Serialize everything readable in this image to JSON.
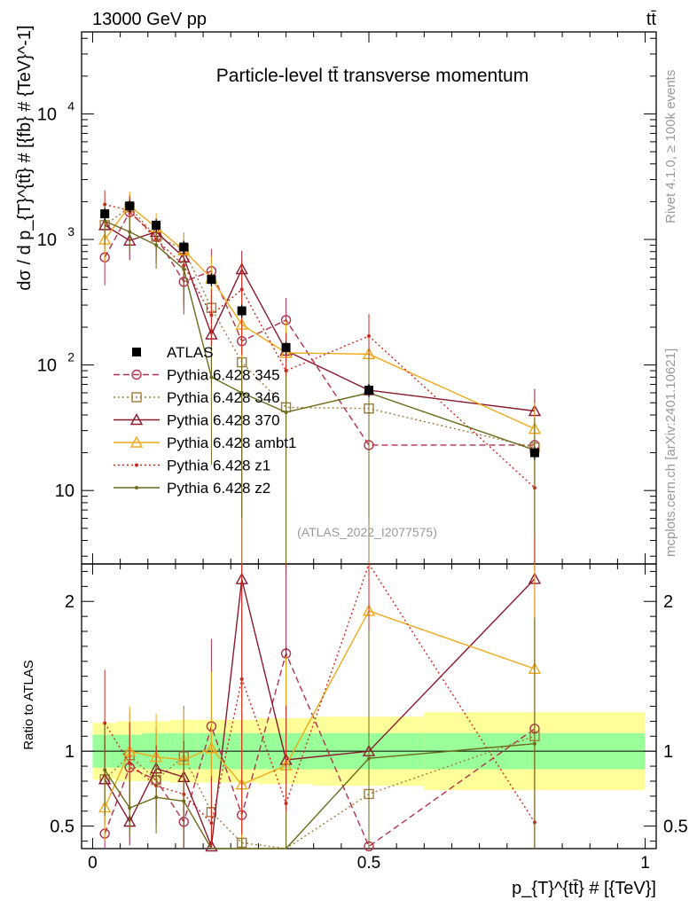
{
  "chart_data": {
    "type": "line",
    "header_left": "13000 GeV pp",
    "header_right": "tt̄",
    "title": "Particle-level tt̄ transverse momentum",
    "analysis_id": "(ATLAS_2022_I2077575)",
    "side_label_top": "Rivet 4.1.0, ≥ 100k events",
    "side_label_bottom": "mcplots.cern.ch [arXiv:2401.10621]",
    "ylabel": "dσ / d p_{T}^{tt̄} # [{fb} # {TeV}^-1]",
    "ratio_ylabel": "Ratio to ATLAS",
    "xlabel": "p_{T}^{tt̄} # [{TeV}]",
    "xlim": [
      -0.02,
      1.02
    ],
    "ylim": [
      2.6,
      45000
    ],
    "ratio_ylim": [
      0.35,
      2.25
    ],
    "x_ticks": [
      {
        "value": 0,
        "label": "0"
      },
      {
        "value": 0.5,
        "label": "0.5"
      },
      {
        "value": 1,
        "label": "1"
      }
    ],
    "y_ticks": [
      {
        "value": 10,
        "label": "10"
      },
      {
        "value": 100,
        "label": "10^2"
      },
      {
        "value": 1000,
        "label": "10^3"
      },
      {
        "value": 10000,
        "label": "10^4"
      }
    ],
    "ratio_ticks": [
      {
        "value": 0.5,
        "label": "0.5"
      },
      {
        "value": 1,
        "label": "1"
      },
      {
        "value": 2,
        "label": "2"
      }
    ],
    "x": [
      0.022,
      0.067,
      0.115,
      0.165,
      0.215,
      0.27,
      0.35,
      0.5,
      0.8
    ],
    "bins": [
      [
        0,
        0.045
      ],
      [
        0.045,
        0.09
      ],
      [
        0.09,
        0.14
      ],
      [
        0.14,
        0.19
      ],
      [
        0.19,
        0.24
      ],
      [
        0.24,
        0.3
      ],
      [
        0.3,
        0.4
      ],
      [
        0.4,
        0.6
      ],
      [
        0.6,
        1.0
      ]
    ],
    "data": {
      "name": "ATLAS",
      "values": [
        1600,
        1850,
        1300,
        870,
        480,
        270,
        138,
        63,
        20
      ],
      "band_inner": [
        0.11,
        0.11,
        0.12,
        0.12,
        0.12,
        0.12,
        0.12,
        0.12,
        0.12
      ],
      "band_outer": [
        0.19,
        0.2,
        0.2,
        0.21,
        0.21,
        0.21,
        0.22,
        0.23,
        0.26
      ]
    },
    "series": [
      {
        "name": "Pythia 6.428 345",
        "color": "#b5304d",
        "dash": "7,4",
        "marker": "circle",
        "values": [
          720,
          1650,
          1050,
          460,
          560,
          155,
          228,
          23,
          23
        ],
        "err": [
          0.4,
          0.3,
          0.3,
          0.45,
          0.5,
          1.2,
          0.5,
          1.5,
          1.0
        ]
      },
      {
        "name": "Pythia 6.428 346",
        "color": "#a07a3a",
        "dash": "2,3",
        "marker": "square",
        "values": [
          1300,
          1800,
          1050,
          840,
          285,
          105,
          46,
          45,
          22
        ],
        "err": [
          0.3,
          0.3,
          0.3,
          0.35,
          0.5,
          1.1,
          0.8,
          1.0,
          0.9
        ]
      },
      {
        "name": "Pythia 6.428 370",
        "color": "#8b1a2e",
        "dash": "",
        "marker": "triangle",
        "values": [
          1300,
          980,
          1150,
          720,
          175,
          580,
          130,
          63,
          43
        ],
        "err": [
          0.35,
          0.3,
          0.3,
          0.35,
          0.6,
          0.4,
          0.8,
          0.9,
          0.5
        ]
      },
      {
        "name": "Pythia 6.428 ambt1",
        "color": "#f0a818",
        "dash": "",
        "marker": "triangle",
        "values": [
          1000,
          1850,
          1250,
          820,
          490,
          210,
          125,
          122,
          31
        ],
        "err": [
          0.35,
          0.3,
          0.3,
          0.35,
          0.5,
          0.9,
          0.8,
          0.6,
          0.6
        ]
      },
      {
        "name": "Pythia 6.428 z1",
        "color": "#d0281d",
        "dash": "2,3",
        "marker": "dot",
        "values": [
          1900,
          1700,
          1000,
          620,
          250,
          400,
          90,
          170,
          10.5
        ],
        "err": [
          0.3,
          0.3,
          0.35,
          0.5,
          0.6,
          0.7,
          1.0,
          0.5,
          1.0
        ]
      },
      {
        "name": "Pythia 6.428 z2",
        "color": "#6b6b1a",
        "dash": "",
        "marker": "dot",
        "values": [
          1400,
          1150,
          900,
          580,
          80,
          60,
          42,
          60,
          21
        ],
        "err": [
          0.35,
          0.3,
          0.35,
          0.5,
          0.8,
          0.9,
          0.95,
          0.9,
          0.8
        ]
      }
    ]
  }
}
